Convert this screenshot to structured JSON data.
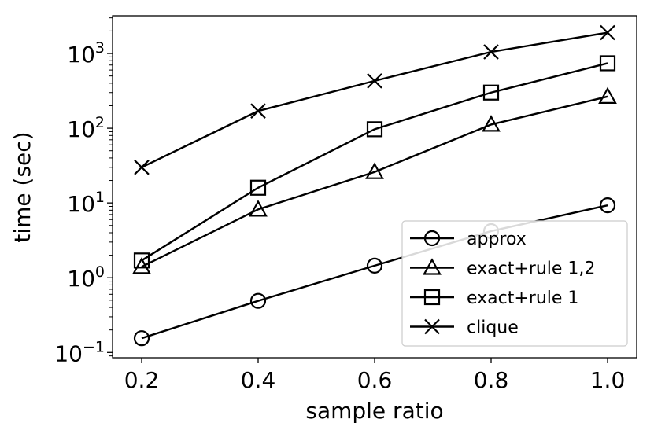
{
  "chart_data": {
    "type": "line",
    "title": "",
    "xlabel": "sample ratio",
    "ylabel": "time (sec)",
    "yscale": "log",
    "x": [
      0.2,
      0.4,
      0.6,
      0.8,
      1.0
    ],
    "xticks": [
      "0.2",
      "0.4",
      "0.6",
      "0.8",
      "1.0"
    ],
    "xlim": [
      0.15,
      1.05
    ],
    "ylim": [
      0.085,
      3200
    ],
    "yticks": [
      {
        "value": 0.1,
        "base": "10",
        "exp": "−1"
      },
      {
        "value": 1,
        "base": "10",
        "exp": "0"
      },
      {
        "value": 10,
        "base": "10",
        "exp": "1"
      },
      {
        "value": 100,
        "base": "10",
        "exp": "2"
      },
      {
        "value": 1000,
        "base": "10",
        "exp": "3"
      }
    ],
    "grid": false,
    "legend_position": "lower-right",
    "series": [
      {
        "name": "approx",
        "marker": "circle",
        "color": "#000000",
        "values": [
          0.155,
          0.49,
          1.45,
          4.2,
          9.3
        ]
      },
      {
        "name": "exact+rule 1,2",
        "marker": "triangle",
        "color": "#000000",
        "values": [
          1.4,
          8.2,
          26,
          112,
          265
        ]
      },
      {
        "name": "exact+rule 1",
        "marker": "square",
        "color": "#000000",
        "values": [
          1.7,
          16,
          97,
          300,
          740
        ]
      },
      {
        "name": "clique",
        "marker": "x",
        "color": "#000000",
        "values": [
          30,
          170,
          430,
          1050,
          1900
        ]
      }
    ]
  }
}
